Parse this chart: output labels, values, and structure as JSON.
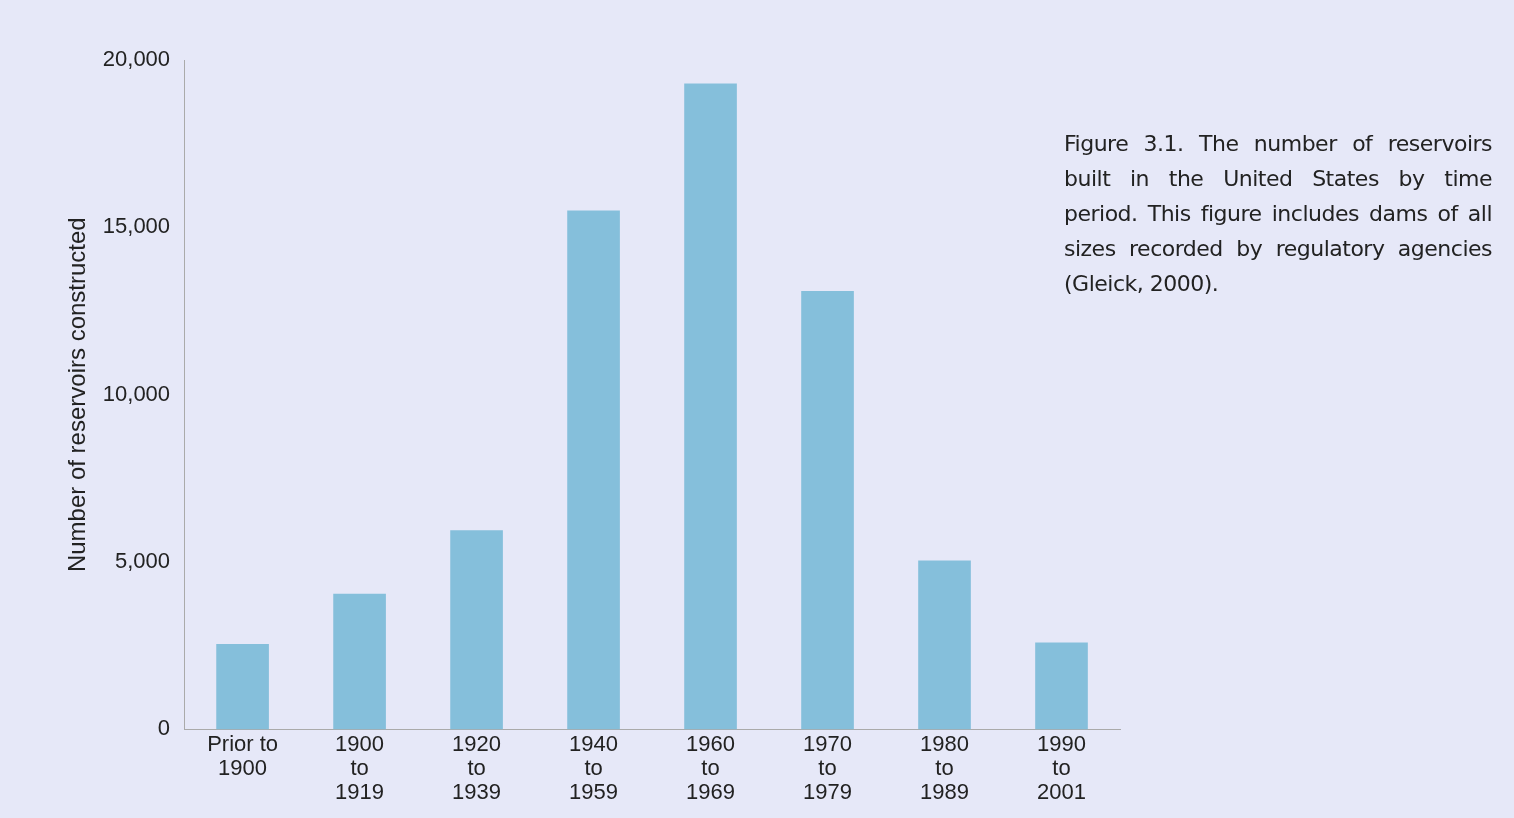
{
  "chart_data": {
    "type": "bar",
    "ylabel": "Number of reservoirs constructed",
    "categories": [
      "Prior to\n1900",
      "1900\nto\n1919",
      "1920\nto\n1939",
      "1940\nto\n1959",
      "1960\nto\n1969",
      "1970\nto\n1979",
      "1980\nto\n1989",
      "1990\nto\n2001"
    ],
    "values": [
      2550,
      4050,
      5950,
      15500,
      19300,
      13100,
      5050,
      2600
    ],
    "color": "#85bfdb",
    "ylim": [
      0,
      20000
    ],
    "yticks": [
      {
        "value": 0,
        "label": "0"
      },
      {
        "value": 5000,
        "label": "5,000"
      },
      {
        "value": 10000,
        "label": "10,000"
      },
      {
        "value": 15000,
        "label": "15,000"
      },
      {
        "value": 20000,
        "label": "20,000"
      }
    ],
    "grid": false,
    "legend": false,
    "annotations": [
      "Figure 3.1. The number of reservoirs built in the United States by time period. This figure includes dams of all sizes recorded by regulatory agencies (Gleick, 2000)."
    ]
  }
}
